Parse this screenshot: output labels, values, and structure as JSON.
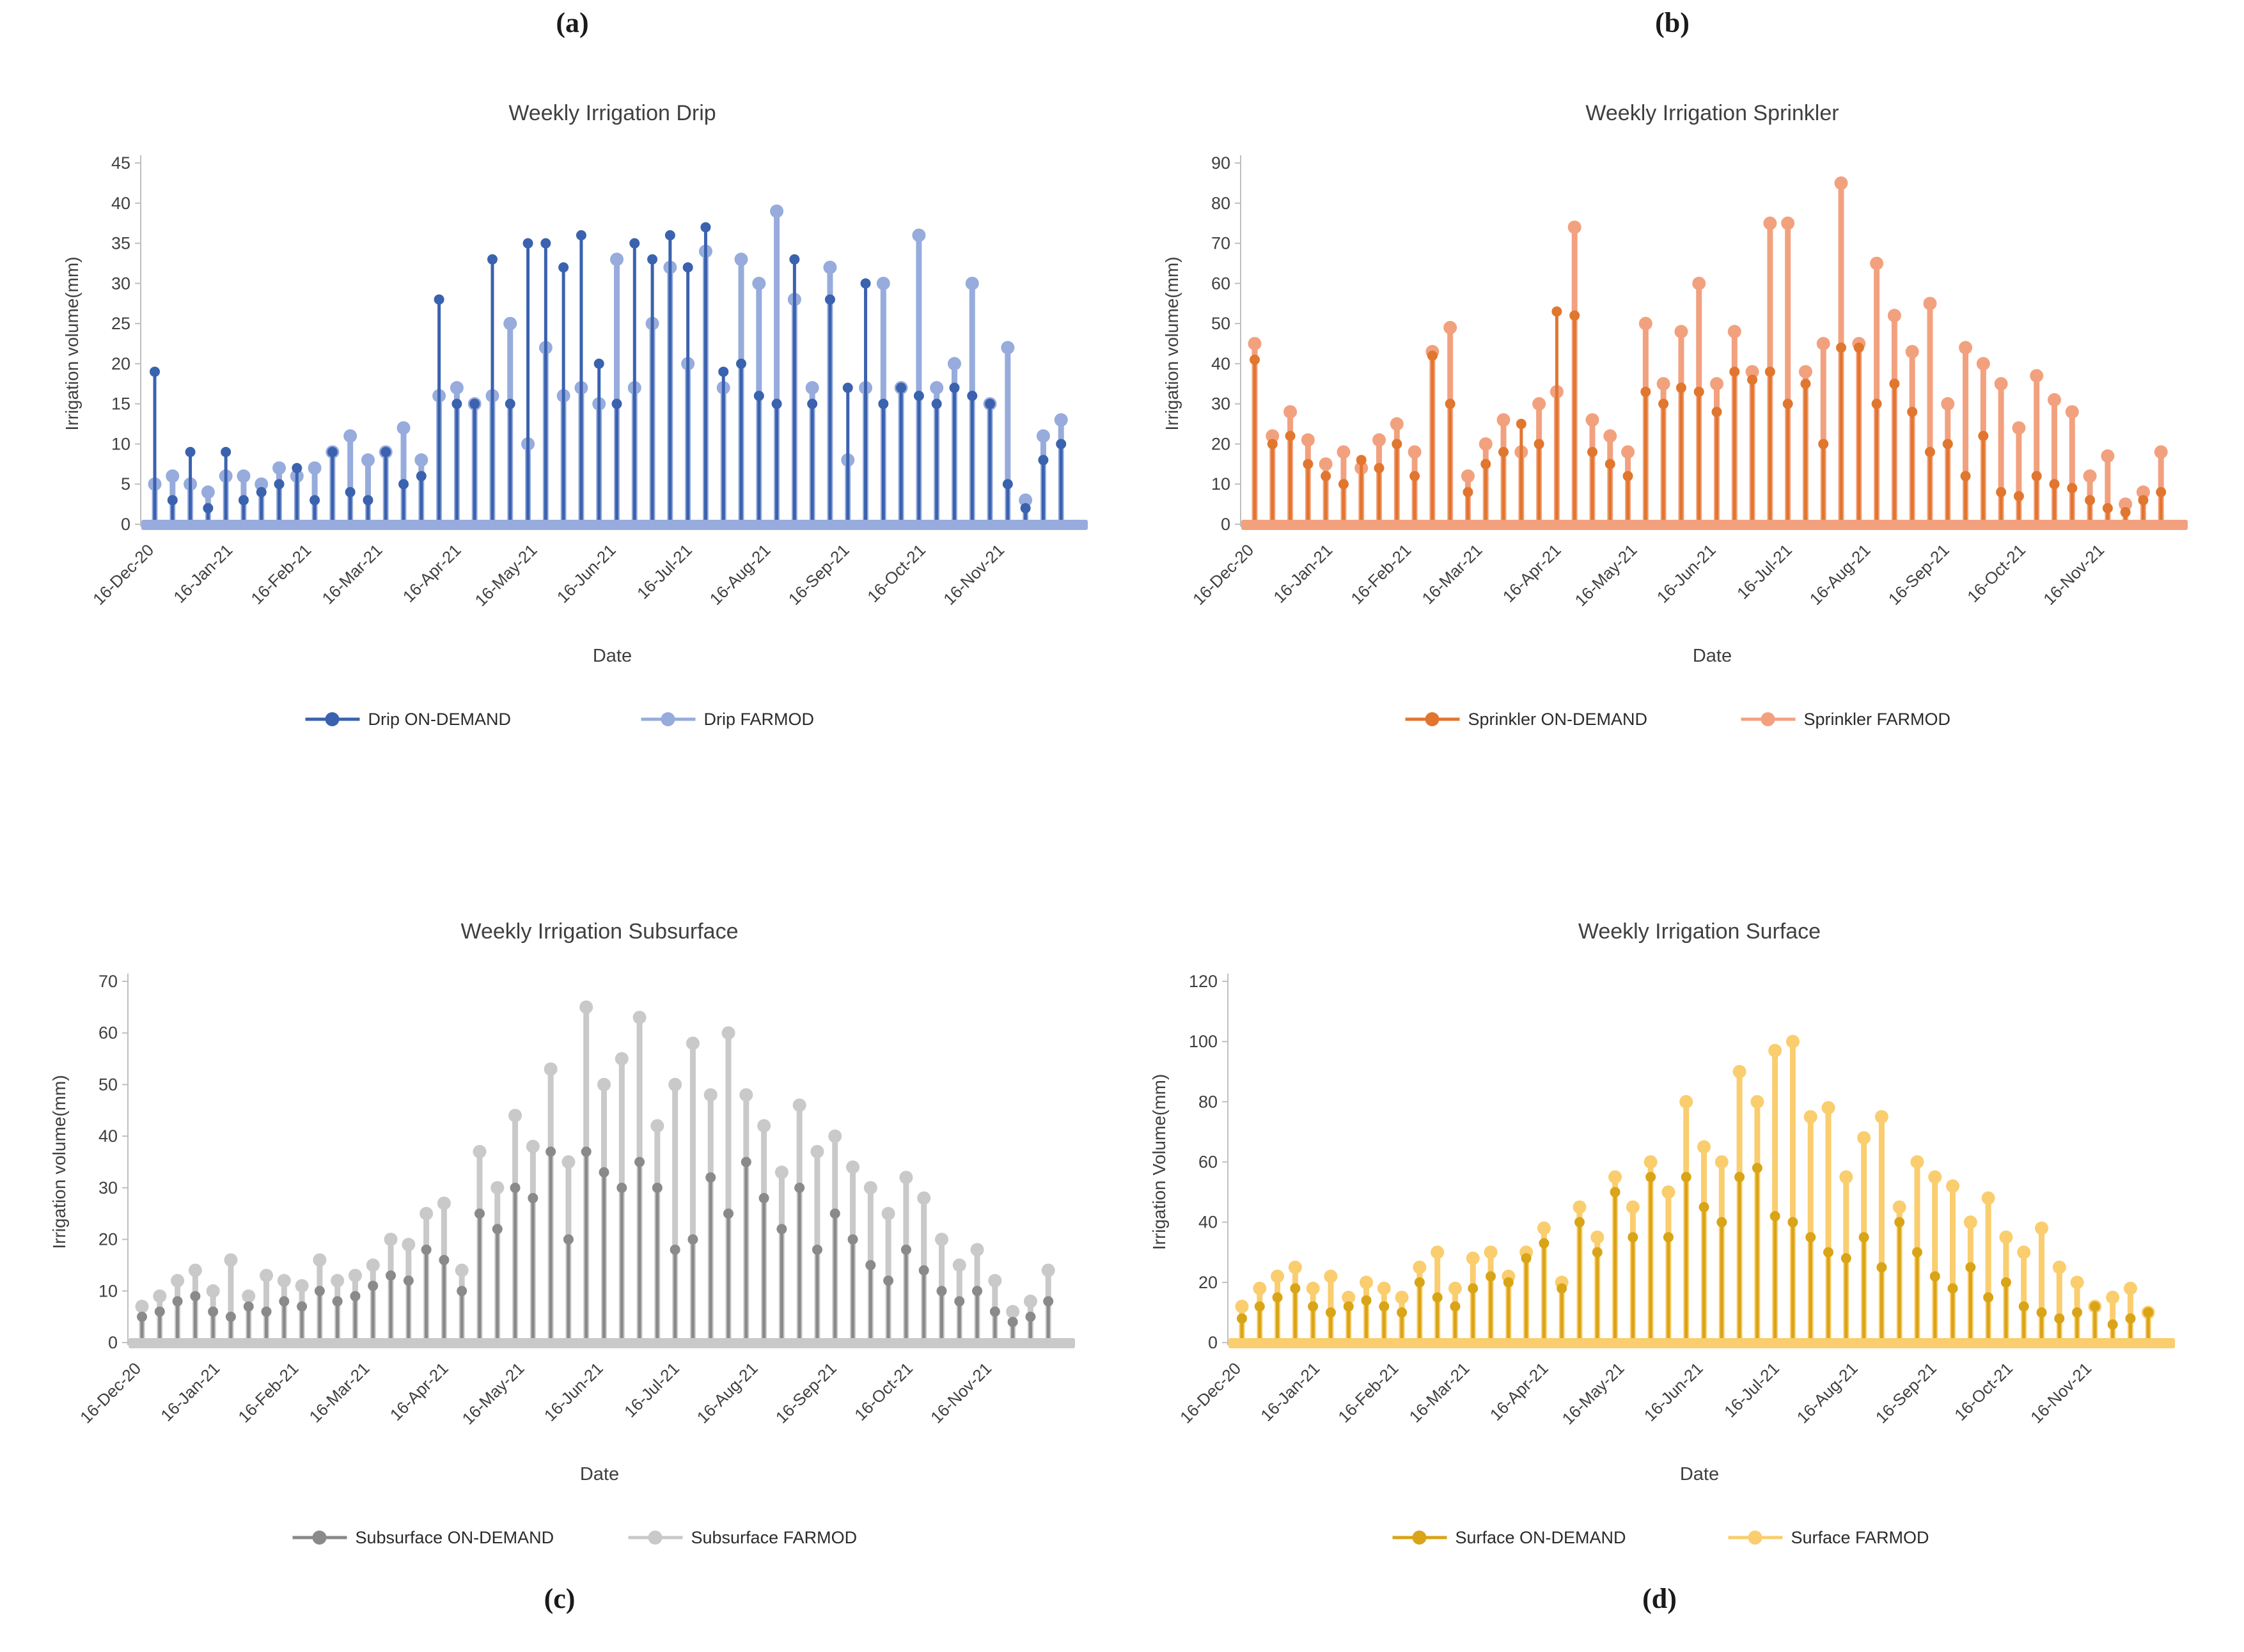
{
  "figure_labels": [
    "(a)",
    "(b)",
    "(c)",
    "(d)"
  ],
  "chart_data": [
    {
      "type": "scatter",
      "style": "stem-lollipop",
      "title": "Weekly Irrigation Drip",
      "xlabel": "Date",
      "ylabel": "Irrigation volume(mm)",
      "ylim": [
        0,
        45
      ],
      "ytick_step": 5,
      "grid": false,
      "legend_position": "bottom",
      "weeks": 52,
      "x_ticklabels": [
        "16-Dec-20",
        "16-Jan-21",
        "16-Feb-21",
        "16-Mar-21",
        "16-Apr-21",
        "16-May-21",
        "16-Jun-21",
        "16-Jul-21",
        "16-Aug-21",
        "16-Sep-21",
        "16-Oct-21",
        "16-Nov-21"
      ],
      "x_tickpos": [
        0,
        4.43,
        8.86,
        12.86,
        17.29,
        21.57,
        26,
        30.29,
        34.71,
        39.14,
        43.43,
        47.86
      ],
      "series": [
        {
          "name": "Drip ON-DEMAND",
          "color": "#3a62ae",
          "marker": "circle",
          "values": [
            19,
            3,
            9,
            2,
            9,
            3,
            4,
            5,
            7,
            3,
            9,
            4,
            3,
            9,
            5,
            6,
            28,
            15,
            15,
            33,
            15,
            35,
            35,
            32,
            36,
            20,
            15,
            35,
            33,
            36,
            32,
            37,
            19,
            20,
            16,
            15,
            33,
            15,
            28,
            17,
            30,
            15,
            17,
            16,
            15,
            17,
            16,
            15,
            5,
            2,
            8,
            10
          ]
        },
        {
          "name": "Drip FARMOD",
          "color": "#97abdc",
          "marker": "circle",
          "values": [
            5,
            6,
            5,
            4,
            6,
            6,
            5,
            7,
            6,
            7,
            9,
            11,
            8,
            9,
            12,
            8,
            16,
            17,
            15,
            16,
            25,
            10,
            22,
            16,
            17,
            15,
            33,
            17,
            25,
            32,
            20,
            34,
            17,
            33,
            30,
            39,
            28,
            17,
            32,
            8,
            17,
            30,
            17,
            36,
            17,
            20,
            30,
            15,
            22,
            3,
            11,
            13
          ]
        }
      ]
    },
    {
      "type": "scatter",
      "style": "stem-lollipop",
      "title": "Weekly Irrigation Sprinkler",
      "xlabel": "Date",
      "ylabel": "Irrigation volume(mm)",
      "ylim": [
        0,
        90
      ],
      "ytick_step": 10,
      "grid": false,
      "legend_position": "bottom",
      "weeks": 52,
      "x_ticklabels": [
        "16-Dec-20",
        "16-Jan-21",
        "16-Feb-21",
        "16-Mar-21",
        "16-Apr-21",
        "16-May-21",
        "16-Jun-21",
        "16-Jul-21",
        "16-Aug-21",
        "16-Sep-21",
        "16-Oct-21",
        "16-Nov-21"
      ],
      "x_tickpos": [
        0,
        4.43,
        8.86,
        12.86,
        17.29,
        21.57,
        26,
        30.29,
        34.71,
        39.14,
        43.43,
        47.86
      ],
      "series": [
        {
          "name": "Sprinkler ON-DEMAND",
          "color": "#e1762f",
          "marker": "circle",
          "values": [
            41,
            20,
            22,
            15,
            12,
            10,
            16,
            14,
            20,
            12,
            42,
            30,
            8,
            15,
            18,
            25,
            20,
            53,
            52,
            18,
            15,
            12,
            33,
            30,
            34,
            33,
            28,
            38,
            36,
            38,
            30,
            35,
            20,
            44,
            44,
            30,
            35,
            28,
            18,
            20,
            12,
            22,
            8,
            7,
            12,
            10,
            9,
            6,
            4,
            3,
            6,
            8
          ]
        },
        {
          "name": "Sprinkler FARMOD",
          "color": "#f2a17f",
          "marker": "circle",
          "values": [
            45,
            22,
            28,
            21,
            15,
            18,
            14,
            21,
            25,
            18,
            43,
            49,
            12,
            20,
            26,
            18,
            30,
            33,
            74,
            26,
            22,
            18,
            50,
            35,
            48,
            60,
            35,
            48,
            38,
            75,
            75,
            38,
            45,
            85,
            45,
            65,
            52,
            43,
            55,
            30,
            44,
            40,
            35,
            24,
            37,
            31,
            28,
            12,
            17,
            5,
            8,
            18
          ]
        }
      ]
    },
    {
      "type": "scatter",
      "style": "stem-lollipop",
      "title": "Weekly Irrigation Subsurface",
      "xlabel": "Date",
      "ylabel": "Irrigation volume(mm)",
      "ylim": [
        0,
        70
      ],
      "ytick_step": 10,
      "grid": false,
      "legend_position": "bottom",
      "weeks": 52,
      "x_ticklabels": [
        "16-Dec-20",
        "16-Jan-21",
        "16-Feb-21",
        "16-Mar-21",
        "16-Apr-21",
        "16-May-21",
        "16-Jun-21",
        "16-Jul-21",
        "16-Aug-21",
        "16-Sep-21",
        "16-Oct-21",
        "16-Nov-21"
      ],
      "x_tickpos": [
        0,
        4.43,
        8.86,
        12.86,
        17.29,
        21.57,
        26,
        30.29,
        34.71,
        39.14,
        43.43,
        47.86
      ],
      "series": [
        {
          "name": "Subsurface ON-DEMAND",
          "color": "#8a8a8a",
          "marker": "circle",
          "values": [
            5,
            6,
            8,
            9,
            6,
            5,
            7,
            6,
            8,
            7,
            10,
            8,
            9,
            11,
            13,
            12,
            18,
            16,
            10,
            25,
            22,
            30,
            28,
            37,
            20,
            37,
            33,
            30,
            35,
            30,
            18,
            20,
            32,
            25,
            35,
            28,
            22,
            30,
            18,
            25,
            20,
            15,
            12,
            18,
            14,
            10,
            8,
            10,
            6,
            4,
            5,
            8
          ]
        },
        {
          "name": "Subsurface FARMOD",
          "color": "#c9c9c9",
          "marker": "circle",
          "values": [
            7,
            9,
            12,
            14,
            10,
            16,
            9,
            13,
            12,
            11,
            16,
            12,
            13,
            15,
            20,
            19,
            25,
            27,
            14,
            37,
            30,
            44,
            38,
            53,
            35,
            65,
            50,
            55,
            63,
            42,
            50,
            58,
            48,
            60,
            48,
            42,
            33,
            46,
            37,
            40,
            34,
            30,
            25,
            32,
            28,
            20,
            15,
            18,
            12,
            6,
            8,
            14
          ]
        }
      ]
    },
    {
      "type": "scatter",
      "style": "stem-lollipop",
      "title": "Weekly Irrigation Surface",
      "xlabel": "Date",
      "ylabel": "Irrigation Volume(mm)",
      "ylim": [
        0,
        120
      ],
      "ytick_step": 20,
      "grid": false,
      "legend_position": "bottom",
      "weeks": 52,
      "x_ticklabels": [
        "16-Dec-20",
        "16-Jan-21",
        "16-Feb-21",
        "16-Mar-21",
        "16-Apr-21",
        "16-May-21",
        "16-Jun-21",
        "16-Jul-21",
        "16-Aug-21",
        "16-Sep-21",
        "16-Oct-21",
        "16-Nov-21"
      ],
      "x_tickpos": [
        0,
        4.43,
        8.86,
        12.86,
        17.29,
        21.57,
        26,
        30.29,
        34.71,
        39.14,
        43.43,
        47.86
      ],
      "series": [
        {
          "name": "Surface ON-DEMAND",
          "color": "#d9a417",
          "marker": "circle",
          "values": [
            8,
            12,
            15,
            18,
            12,
            10,
            12,
            14,
            12,
            10,
            20,
            15,
            12,
            18,
            22,
            20,
            28,
            33,
            18,
            40,
            30,
            50,
            35,
            55,
            35,
            55,
            45,
            40,
            55,
            58,
            42,
            40,
            35,
            30,
            28,
            35,
            25,
            40,
            30,
            22,
            18,
            25,
            15,
            20,
            12,
            10,
            8,
            10,
            12,
            6,
            8,
            10
          ]
        },
        {
          "name": "Surface FARMOD",
          "color": "#facd6e",
          "marker": "circle",
          "values": [
            12,
            18,
            22,
            25,
            18,
            22,
            15,
            20,
            18,
            15,
            25,
            30,
            18,
            28,
            30,
            22,
            30,
            38,
            20,
            45,
            35,
            55,
            45,
            60,
            50,
            80,
            65,
            60,
            90,
            80,
            97,
            100,
            75,
            78,
            55,
            68,
            75,
            45,
            60,
            55,
            52,
            40,
            48,
            35,
            30,
            38,
            25,
            20,
            12,
            15,
            18,
            10
          ]
        }
      ]
    }
  ],
  "text_colors": {
    "title": "#404040",
    "axis": "#3f3f3f"
  }
}
